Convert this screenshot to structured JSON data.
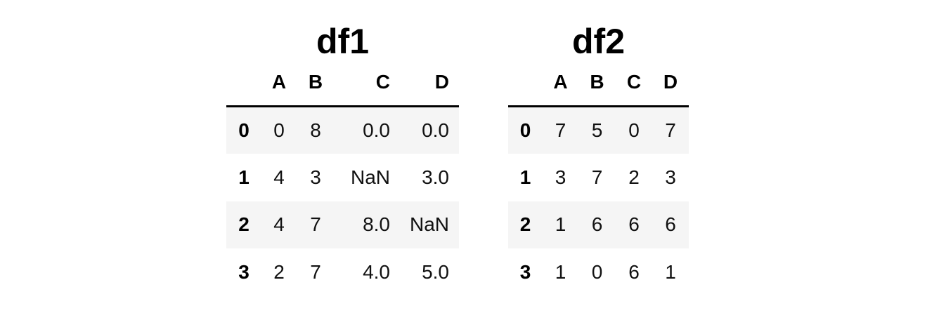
{
  "frames": [
    {
      "title": "df1",
      "columns": [
        "A",
        "B",
        "C",
        "D"
      ],
      "index": [
        "0",
        "1",
        "2",
        "3"
      ],
      "rows": [
        [
          "0",
          "8",
          "0.0",
          "0.0"
        ],
        [
          "4",
          "3",
          "NaN",
          "3.0"
        ],
        [
          "4",
          "7",
          "8.0",
          "NaN"
        ],
        [
          "2",
          "7",
          "4.0",
          "5.0"
        ]
      ]
    },
    {
      "title": "df2",
      "columns": [
        "A",
        "B",
        "C",
        "D"
      ],
      "index": [
        "0",
        "1",
        "2",
        "3"
      ],
      "rows": [
        [
          "7",
          "5",
          "0",
          "7"
        ],
        [
          "3",
          "7",
          "2",
          "3"
        ],
        [
          "1",
          "6",
          "6",
          "6"
        ],
        [
          "1",
          "0",
          "6",
          "1"
        ]
      ]
    }
  ],
  "colors": {
    "stripe": "#f5f5f5",
    "header_rule": "#000000",
    "text": "#000000"
  }
}
